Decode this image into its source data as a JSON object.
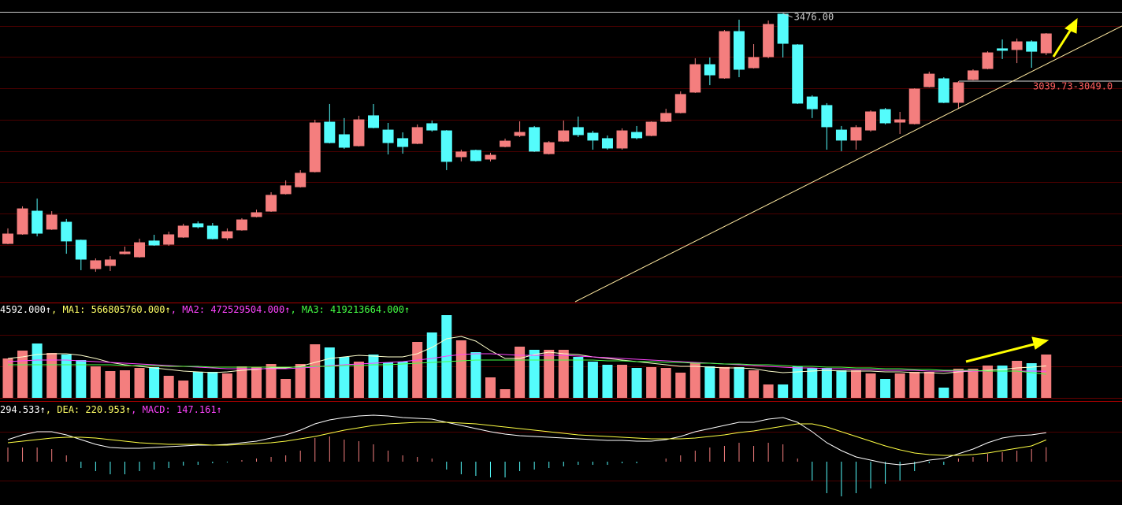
{
  "chart_data": [
    {
      "type": "candlestick",
      "ylim": [
        1620,
        3562
      ],
      "up_color": "#f47e7e",
      "down_color": "#54fcfc",
      "open": [
        1995,
        2056,
        2203,
        2087,
        2132,
        2016,
        1833,
        1853,
        1929,
        1909,
        2011,
        1990,
        2036,
        2122,
        2107,
        2031,
        2082,
        2168,
        2203,
        2315,
        2360,
        2457,
        2776,
        2695,
        2624,
        2817,
        2725,
        2670,
        2639,
        2766,
        2720,
        2553,
        2594,
        2538,
        2619,
        2690,
        2741,
        2573,
        2654,
        2741,
        2705,
        2670,
        2609,
        2710,
        2690,
        2781,
        2837,
        2969,
        3146,
        3060,
        3359,
        3126,
        3197,
        3471,
        3273,
        2938,
        2883,
        2725,
        2660,
        2725,
        2857,
        2776,
        2766,
        3004,
        3055,
        2903,
        3050,
        3121,
        3248,
        3243,
        3293,
        3222
      ],
      "high": [
        2092,
        2234,
        2284,
        2203,
        2153,
        2020,
        1899,
        1914,
        1975,
        2026,
        2051,
        2071,
        2122,
        2137,
        2127,
        2092,
        2158,
        2213,
        2325,
        2401,
        2467,
        2791,
        2893,
        2802,
        2817,
        2893,
        2771,
        2710,
        2761,
        2786,
        2725,
        2599,
        2599,
        2579,
        2670,
        2781,
        2751,
        2654,
        2786,
        2812,
        2720,
        2690,
        2736,
        2751,
        2781,
        2862,
        2974,
        3187,
        3192,
        3369,
        3435,
        3278,
        3430,
        3476,
        3278,
        2949,
        2898,
        2751,
        2756,
        2852,
        2867,
        2842,
        2994,
        3101,
        3065,
        3040,
        3116,
        3232,
        3308,
        3314,
        3303,
        3349
      ],
      "low": [
        1990,
        2051,
        2041,
        2082,
        1929,
        1823,
        1813,
        1818,
        1924,
        1904,
        1980,
        1980,
        2031,
        2092,
        2021,
        2016,
        2077,
        2163,
        2198,
        2310,
        2355,
        2452,
        2639,
        2604,
        2619,
        2736,
        2568,
        2573,
        2634,
        2715,
        2467,
        2523,
        2523,
        2523,
        2614,
        2680,
        2584,
        2568,
        2649,
        2680,
        2599,
        2599,
        2599,
        2665,
        2685,
        2776,
        2832,
        2964,
        3014,
        3055,
        3065,
        3121,
        3187,
        3192,
        2893,
        2802,
        2599,
        2589,
        2599,
        2715,
        2761,
        2700,
        2761,
        2999,
        2898,
        2862,
        3045,
        3116,
        3182,
        3156,
        3126,
        3207
      ],
      "close": [
        2056,
        2218,
        2061,
        2178,
        2011,
        1894,
        1884,
        1889,
        1940,
        2000,
        1985,
        2051,
        2107,
        2102,
        2026,
        2071,
        2147,
        2193,
        2305,
        2366,
        2447,
        2771,
        2644,
        2614,
        2791,
        2741,
        2644,
        2619,
        2741,
        2725,
        2523,
        2584,
        2528,
        2563,
        2654,
        2710,
        2589,
        2644,
        2720,
        2695,
        2660,
        2609,
        2720,
        2675,
        2776,
        2832,
        2954,
        3146,
        3080,
        3359,
        3116,
        3192,
        3405,
        3283,
        2898,
        2862,
        2746,
        2660,
        2741,
        2842,
        2771,
        2791,
        2989,
        3085,
        2903,
        3030,
        3106,
        3222,
        3238,
        3293,
        3232,
        3344
      ],
      "annotations": [
        {
          "text": "3476.00",
          "value": 3476
        },
        {
          "text": "3039.73-3049.0",
          "value": 3039.73
        }
      ]
    },
    {
      "type": "volume",
      "ylim": [
        0,
        1680000000
      ],
      "header": [
        {
          "text": "4592.000↑",
          "color": "#ffffff"
        },
        {
          "text": ", MA1: 566805760.000↑",
          "color": "#ffff66"
        },
        {
          "text": ", MA2: 472529504.000↑",
          "color": "#ff44ff"
        },
        {
          "text": ", MA3: 419213664.000↑",
          "color": "#44ff44"
        }
      ],
      "values": [
        700000000,
        840000000,
        966000000,
        798000000,
        770000000,
        672000000,
        560000000,
        476000000,
        490000000,
        532000000,
        546000000,
        392000000,
        308000000,
        462000000,
        462000000,
        434000000,
        560000000,
        546000000,
        602000000,
        336000000,
        602000000,
        952000000,
        896000000,
        728000000,
        644000000,
        770000000,
        630000000,
        644000000,
        994000000,
        1162000000,
        1470000000,
        1022000000,
        812000000,
        364000000,
        154000000,
        910000000,
        854000000,
        854000000,
        854000000,
        728000000,
        644000000,
        588000000,
        588000000,
        532000000,
        546000000,
        532000000,
        448000000,
        630000000,
        560000000,
        546000000,
        546000000,
        490000000,
        238000000,
        238000000,
        560000000,
        532000000,
        532000000,
        490000000,
        490000000,
        434000000,
        336000000,
        434000000,
        462000000,
        462000000,
        182000000,
        518000000,
        518000000,
        574000000,
        574000000,
        658000000,
        616000000,
        770000000
      ],
      "series": [
        {
          "color": "#ffffcc",
          "values": [
            700000000,
            728000000,
            770000000,
            784000000,
            784000000,
            756000000,
            700000000,
            630000000,
            588000000,
            560000000,
            532000000,
            504000000,
            476000000,
            462000000,
            448000000,
            462000000,
            490000000,
            504000000,
            532000000,
            532000000,
            560000000,
            630000000,
            700000000,
            728000000,
            756000000,
            742000000,
            728000000,
            728000000,
            784000000,
            896000000,
            1050000000,
            1092000000,
            1008000000,
            840000000,
            700000000,
            700000000,
            770000000,
            812000000,
            784000000,
            770000000,
            728000000,
            700000000,
            672000000,
            644000000,
            616000000,
            588000000,
            560000000,
            560000000,
            546000000,
            532000000,
            532000000,
            518000000,
            476000000,
            448000000,
            462000000,
            476000000,
            490000000,
            476000000,
            476000000,
            476000000,
            462000000,
            462000000,
            448000000,
            448000000,
            434000000,
            462000000,
            476000000,
            490000000,
            504000000,
            532000000,
            546000000,
            566805760
          ]
        },
        {
          "color": "#ff44ff",
          "values": [
            644000000,
            658000000,
            672000000,
            672000000,
            672000000,
            658000000,
            644000000,
            630000000,
            616000000,
            602000000,
            588000000,
            574000000,
            560000000,
            546000000,
            532000000,
            518000000,
            518000000,
            518000000,
            518000000,
            518000000,
            532000000,
            546000000,
            574000000,
            588000000,
            602000000,
            616000000,
            630000000,
            644000000,
            672000000,
            700000000,
            742000000,
            770000000,
            784000000,
            784000000,
            770000000,
            756000000,
            756000000,
            756000000,
            756000000,
            742000000,
            728000000,
            714000000,
            700000000,
            686000000,
            672000000,
            658000000,
            644000000,
            630000000,
            616000000,
            602000000,
            588000000,
            574000000,
            560000000,
            546000000,
            532000000,
            532000000,
            518000000,
            518000000,
            504000000,
            504000000,
            490000000,
            490000000,
            490000000,
            476000000,
            476000000,
            476000000,
            476000000,
            476000000,
            476000000,
            476000000,
            476000000,
            472529504
          ]
        },
        {
          "color": "#44ff44",
          "values": [
            588000000,
            588000000,
            588000000,
            588000000,
            588000000,
            588000000,
            588000000,
            588000000,
            574000000,
            574000000,
            574000000,
            560000000,
            560000000,
            560000000,
            546000000,
            546000000,
            546000000,
            546000000,
            546000000,
            546000000,
            546000000,
            560000000,
            560000000,
            574000000,
            574000000,
            588000000,
            588000000,
            602000000,
            616000000,
            630000000,
            644000000,
            658000000,
            672000000,
            672000000,
            672000000,
            672000000,
            672000000,
            672000000,
            672000000,
            672000000,
            672000000,
            658000000,
            658000000,
            644000000,
            644000000,
            630000000,
            630000000,
            616000000,
            616000000,
            602000000,
            602000000,
            588000000,
            588000000,
            574000000,
            560000000,
            560000000,
            546000000,
            546000000,
            532000000,
            532000000,
            518000000,
            518000000,
            504000000,
            504000000,
            490000000,
            490000000,
            490000000,
            476000000,
            476000000,
            476000000,
            448000000,
            419213664
          ]
        }
      ]
    },
    {
      "type": "macd",
      "ylim": [
        -440,
        592
      ],
      "up_color": "#f47e7e",
      "down_color": "#54fcfc",
      "header": [
        {
          "text": "294.533↑",
          "color": "#ffffff"
        },
        {
          "text": ", DEA: 220.953↑",
          "color": "#ffff66"
        },
        {
          "text": ", MACD: 147.161↑",
          "color": "#ff44ff"
        }
      ],
      "hist": [
        144,
        144,
        144,
        128,
        64,
        -64,
        -96,
        -128,
        -128,
        -96,
        -80,
        -64,
        -40,
        -32,
        -16,
        -8,
        16,
        32,
        48,
        64,
        112,
        240,
        256,
        224,
        208,
        176,
        112,
        64,
        48,
        32,
        -80,
        -128,
        -144,
        -160,
        -160,
        -96,
        -80,
        -64,
        -48,
        -32,
        -32,
        -32,
        -16,
        -16,
        0,
        32,
        64,
        112,
        144,
        160,
        192,
        160,
        192,
        176,
        32,
        -192,
        -320,
        -352,
        -320,
        -272,
        -224,
        -192,
        -96,
        -16,
        -32,
        32,
        48,
        80,
        96,
        112,
        128,
        147.161
      ],
      "series": [
        {
          "color": "#ffffff",
          "values": [
            224,
            272,
            304,
            304,
            272,
            224,
            176,
            144,
            136,
            136,
            144,
            152,
            160,
            168,
            168,
            176,
            192,
            208,
            240,
            272,
            320,
            384,
            424,
            448,
            464,
            472,
            464,
            448,
            440,
            432,
            400,
            368,
            336,
            304,
            280,
            264,
            256,
            248,
            240,
            232,
            224,
            216,
            216,
            208,
            208,
            224,
            256,
            304,
            336,
            368,
            400,
            400,
            432,
            448,
            400,
            304,
            192,
            112,
            48,
            16,
            -16,
            -32,
            -16,
            16,
            32,
            80,
            128,
            192,
            240,
            264,
            272,
            294.533
          ]
        },
        {
          "color": "#ffff44",
          "values": [
            192,
            208,
            224,
            240,
            248,
            248,
            240,
            224,
            208,
            192,
            184,
            176,
            176,
            176,
            168,
            168,
            176,
            184,
            192,
            208,
            232,
            256,
            288,
            320,
            344,
            368,
            384,
            392,
            400,
            400,
            400,
            392,
            384,
            368,
            352,
            336,
            320,
            304,
            288,
            272,
            264,
            256,
            248,
            240,
            232,
            232,
            232,
            240,
            256,
            272,
            296,
            312,
            336,
            360,
            384,
            384,
            352,
            304,
            256,
            208,
            160,
            120,
            88,
            72,
            64,
            64,
            72,
            88,
            112,
            136,
            160,
            220.953
          ]
        }
      ]
    }
  ]
}
